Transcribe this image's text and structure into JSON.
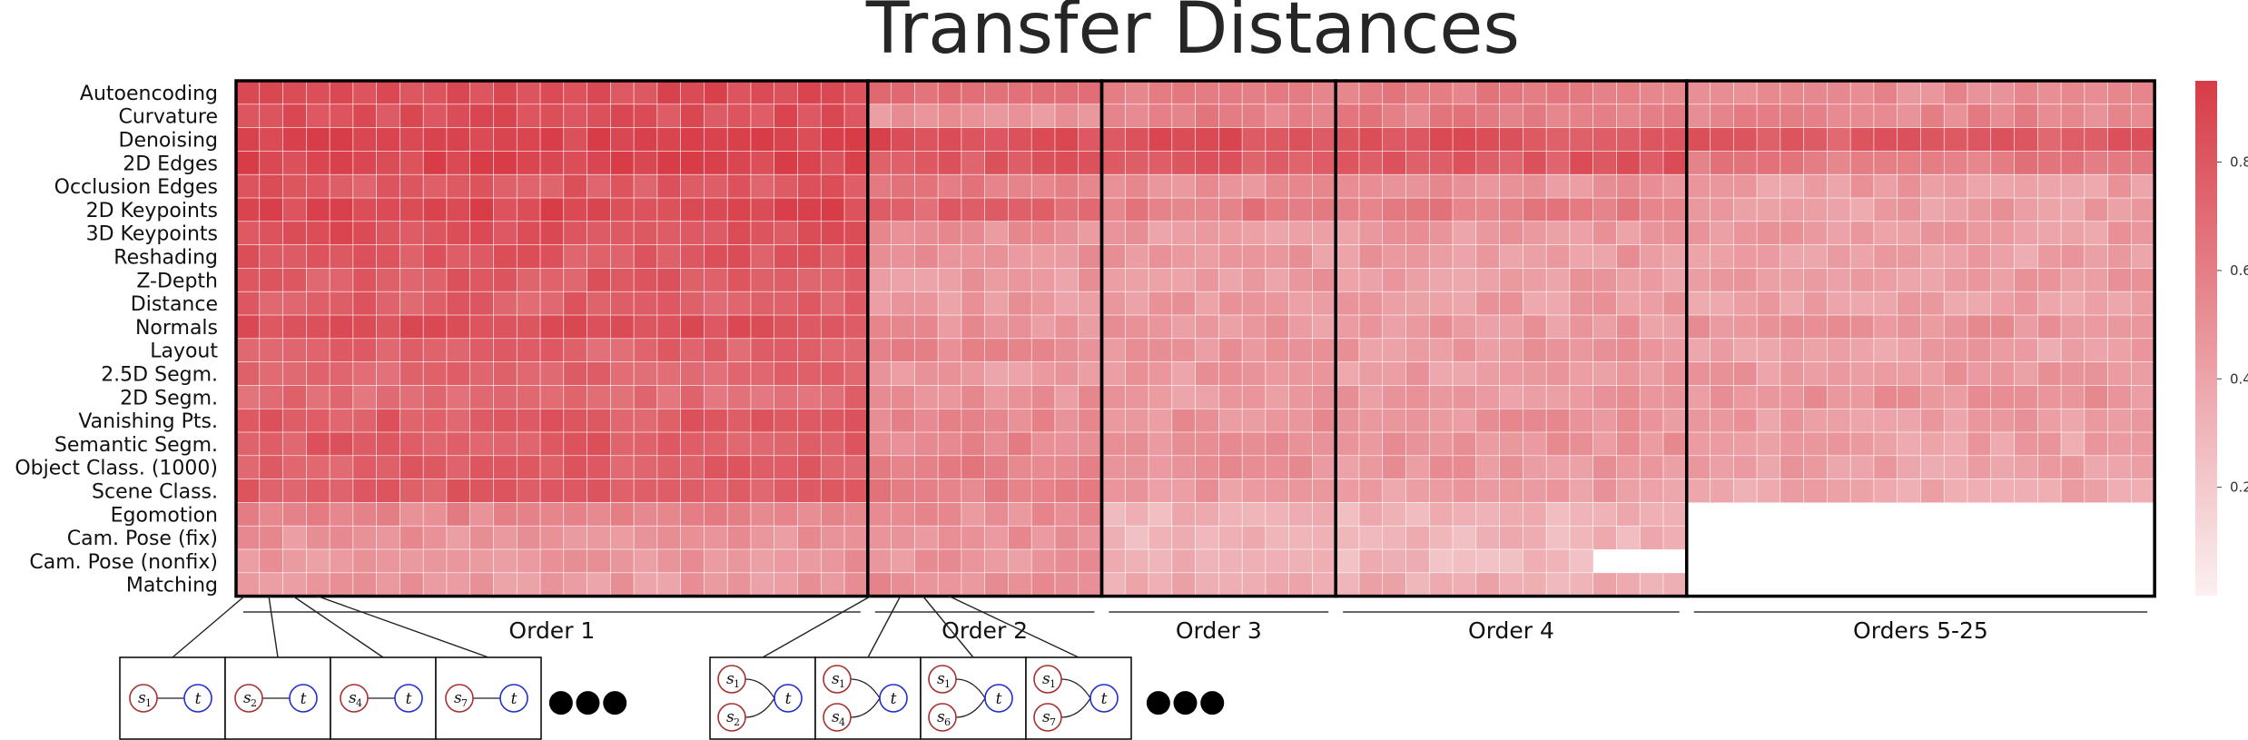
{
  "chart_data": {
    "type": "heatmap",
    "title": "Transfer Distances",
    "rows": [
      "Autoencoding",
      "Curvature",
      "Denoising",
      "2D Edges",
      "Occlusion Edges",
      "2D Keypoints",
      "3D Keypoints",
      "Reshading",
      "Z-Depth",
      "Distance",
      "Normals",
      "Layout",
      "2.5D Segm.",
      "2D Segm.",
      "Vanishing Pts.",
      "Semantic Segm.",
      "Object Class. (1000)",
      "Scene Class.",
      "Egomotion",
      "Cam. Pose (fix)",
      "Cam. Pose (nonfix)",
      "Matching"
    ],
    "groups": [
      {
        "label": "Order 1",
        "columns": 27,
        "base": [
          0.86,
          0.84,
          0.9,
          0.9,
          0.8,
          0.88,
          0.84,
          0.8,
          0.78,
          0.76,
          0.85,
          0.74,
          0.72,
          0.7,
          0.78,
          0.78,
          0.76,
          0.78,
          0.56,
          0.5,
          0.48,
          0.46
        ]
      },
      {
        "label": "Order 2",
        "columns": 10,
        "base": [
          0.66,
          0.5,
          0.86,
          0.8,
          0.6,
          0.74,
          0.5,
          0.5,
          0.46,
          0.46,
          0.5,
          0.56,
          0.46,
          0.5,
          0.56,
          0.56,
          0.6,
          0.6,
          0.52,
          0.5,
          0.48,
          0.52
        ]
      },
      {
        "label": "Order 3",
        "columns": 10,
        "base": [
          0.6,
          0.6,
          0.84,
          0.8,
          0.5,
          0.62,
          0.46,
          0.46,
          0.46,
          0.46,
          0.46,
          0.46,
          0.46,
          0.46,
          0.5,
          0.5,
          0.5,
          0.46,
          0.32,
          0.32,
          0.32,
          0.36
        ]
      },
      {
        "label": "Order 4",
        "columns": 15,
        "base": [
          0.6,
          0.6,
          0.82,
          0.8,
          0.5,
          0.62,
          0.46,
          0.46,
          0.44,
          0.44,
          0.46,
          0.46,
          0.44,
          0.46,
          0.5,
          0.5,
          0.48,
          0.44,
          0.32,
          0.32,
          0.3,
          0.36
        ]
      },
      {
        "label": "Orders 5-25",
        "columns": 20,
        "base": [
          0.52,
          0.56,
          0.78,
          0.62,
          0.44,
          0.44,
          0.44,
          0.42,
          0.44,
          0.44,
          0.5,
          0.42,
          0.46,
          0.5,
          0.44,
          0.42,
          0.42,
          0.4,
          null,
          null,
          null,
          null
        ]
      }
    ],
    "colorbar": {
      "range": [
        0,
        0.95
      ],
      "ticks": [
        0.2,
        0.4,
        0.6,
        0.8
      ],
      "tick_labels": [
        "0.2",
        "0.4",
        "0.6",
        "0.8"
      ],
      "color_low": "#fbf0f1",
      "color_high": "#d73c47"
    },
    "colors": {
      "line": "#000000",
      "node_source": "#a63030",
      "node_target": "#1f2ecc",
      "text": "#262626"
    }
  },
  "diagrams": {
    "first_order": [
      {
        "sources": [
          "1"
        ],
        "target": "t"
      },
      {
        "sources": [
          "2"
        ],
        "target": "t"
      },
      {
        "sources": [
          "4"
        ],
        "target": "t"
      },
      {
        "sources": [
          "7"
        ],
        "target": "t"
      }
    ],
    "second_order": [
      {
        "sources": [
          "1",
          "2"
        ],
        "target": "t"
      },
      {
        "sources": [
          "1",
          "4"
        ],
        "target": "t"
      },
      {
        "sources": [
          "1",
          "6"
        ],
        "target": "t"
      },
      {
        "sources": [
          "1",
          "7"
        ],
        "target": "t"
      }
    ],
    "source_symbol": "s",
    "ellipsis": "●●●"
  }
}
